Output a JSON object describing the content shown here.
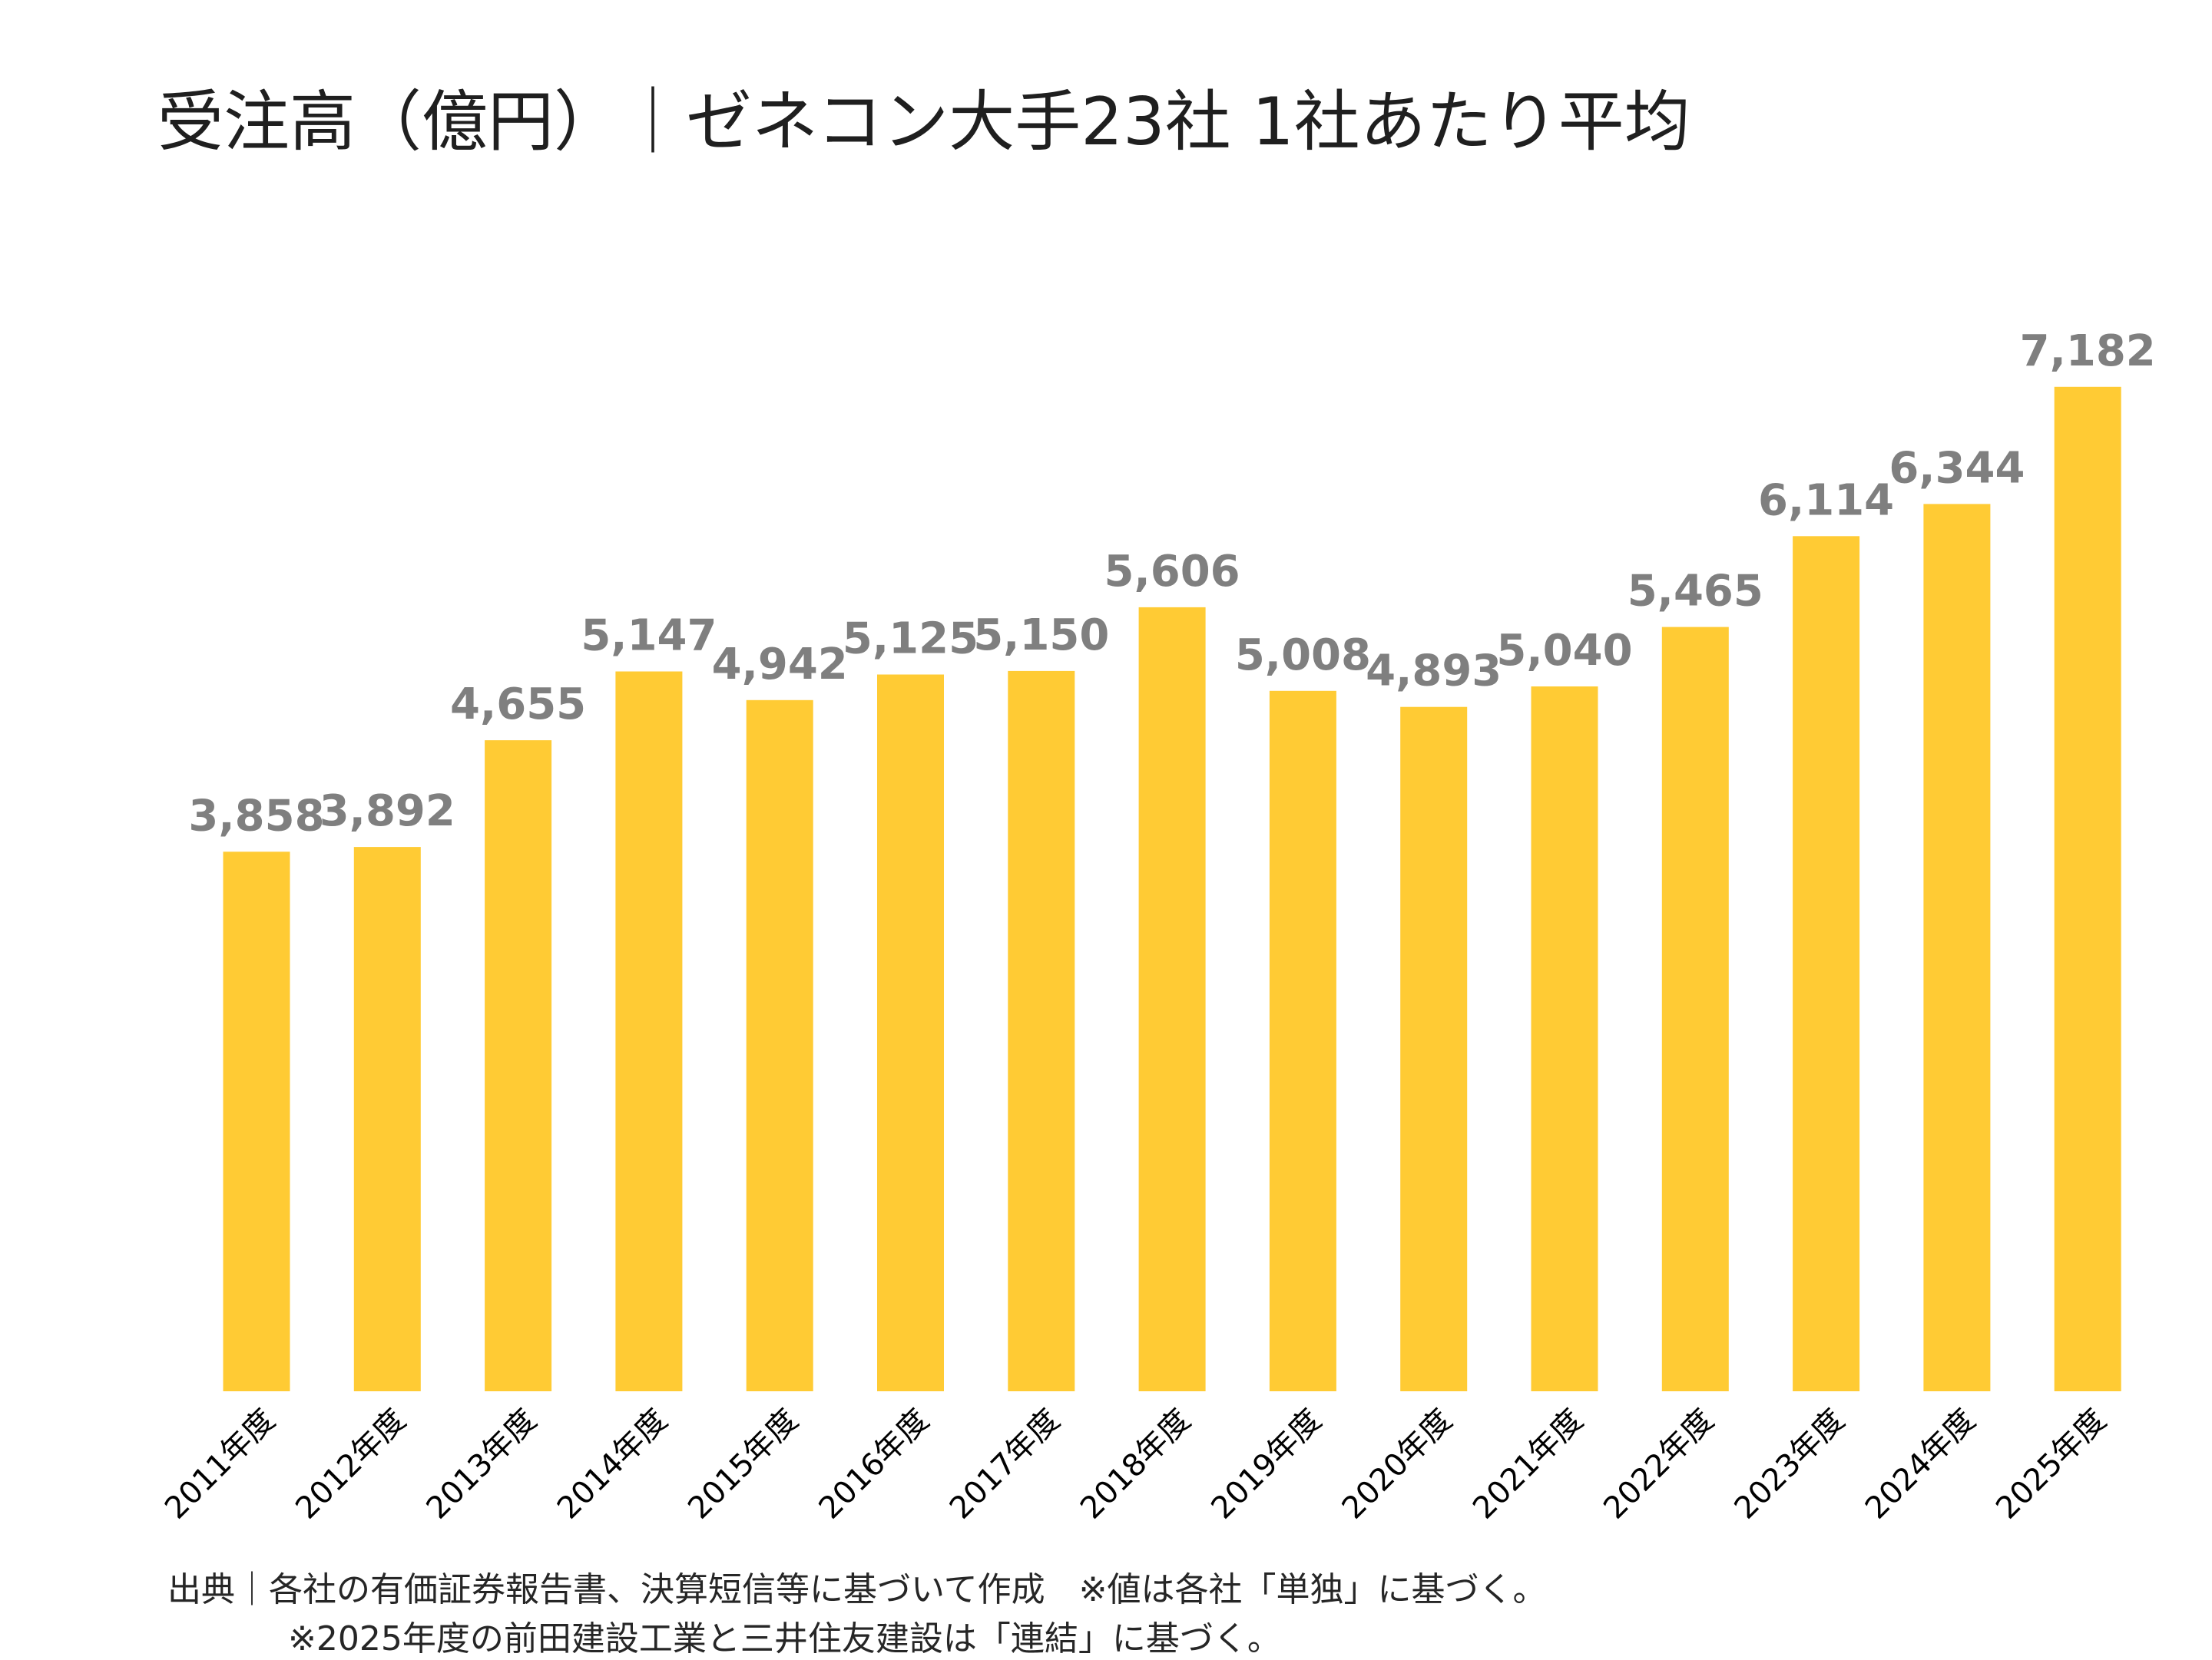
{
  "chart_data": {
    "type": "bar",
    "title": "受注高（億円）｜ゼネコン大手23社 1社あたり平均",
    "categories": [
      "2011年度",
      "2012年度",
      "2013年度",
      "2014年度",
      "2015年度",
      "2016年度",
      "2017年度",
      "2018年度",
      "2019年度",
      "2020年度",
      "2021年度",
      "2022年度",
      "2023年度",
      "2024年度",
      "2025年度"
    ],
    "values": [
      3858,
      3892,
      4655,
      5147,
      4942,
      5125,
      5150,
      5606,
      5008,
      4893,
      5040,
      5465,
      6114,
      6344,
      7182
    ],
    "value_labels": [
      "3,858",
      "3,892",
      "4,655",
      "5,147",
      "4,942",
      "5,125",
      "5,150",
      "5,606",
      "5,008",
      "4,893",
      "5,040",
      "5,465",
      "6,114",
      "6,344",
      "7,182"
    ],
    "ylim": [
      0,
      7800
    ],
    "grid": false,
    "legend": "none",
    "colors": {
      "bar": "#FFCB34",
      "value_label": "#7F7F7F",
      "title": "#1F1F1F"
    }
  },
  "footnotes": {
    "line1": "出典｜各社の有価証券報告書、決算短信等に基づいて作成　※値は各社「単独」に基づく。",
    "line2": "※2025年度の前田建設工業と三井住友建設は「連結」に基づく。"
  }
}
